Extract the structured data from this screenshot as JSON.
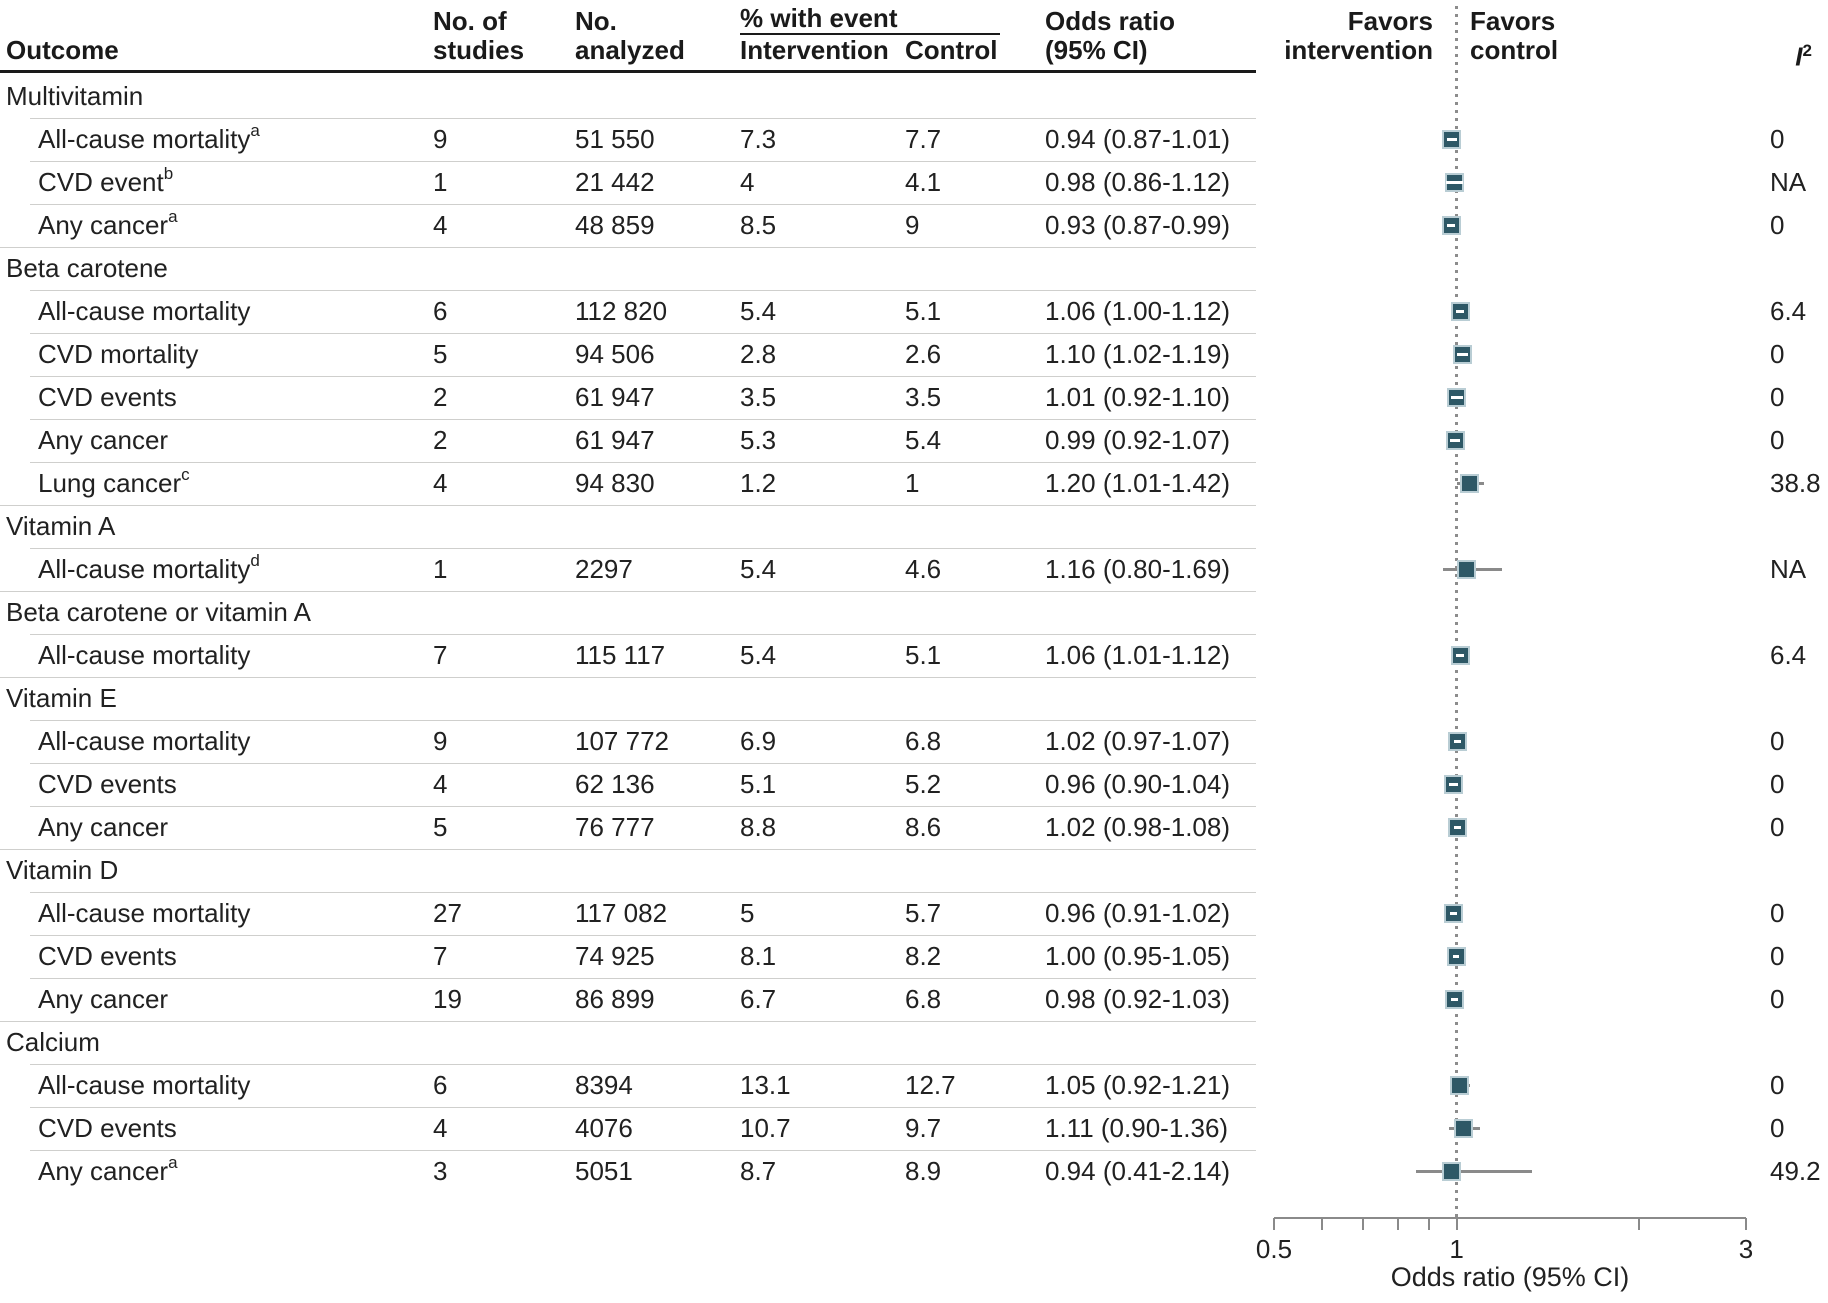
{
  "header": {
    "outcome": "Outcome",
    "no_of_studies_1": "No. of",
    "no_of_studies_2": "studies",
    "no_analyzed_1": "No.",
    "no_analyzed_2": "analyzed",
    "pct_with_event": "% with event",
    "intervention": "Intervention",
    "control": "Control",
    "odds_ratio_1": "Odds ratio",
    "odds_ratio_2": "(95% CI)",
    "favors_intervention_1": "Favors",
    "favors_intervention_2": "intervention",
    "favors_control_1": "Favors",
    "favors_control_2": "control",
    "i2_letter": "I",
    "i2_sup": "2"
  },
  "colors": {
    "marker_fill": "#2e5866",
    "marker_border": "#b9cdd4",
    "whisker": "#8a8a8a",
    "inner_ci": "#ffffff",
    "dotted_line": "#8c8c8c",
    "row_rule": "#cfcfcd",
    "header_rule": "#1a1a1a",
    "text": "#212121"
  },
  "axis": {
    "title": "Odds ratio (95% CI)",
    "min": 0.5,
    "max": 3,
    "scale": "log",
    "ticks": [
      0.5,
      0.6,
      0.7,
      0.8,
      0.9,
      1,
      2,
      3
    ],
    "tick_labels": [
      "0.5",
      "1",
      "3"
    ],
    "tick_label_values": [
      0.5,
      1,
      3
    ]
  },
  "chart_data": {
    "type": "forest",
    "note": "Forest plot of odds ratios; reference line at OR = 1",
    "columns": [
      "Outcome",
      "No. of studies",
      "No. analyzed",
      "% with event Intervention",
      "% with event Control",
      "Odds ratio (95% CI)",
      "I2"
    ],
    "rows": [
      {
        "type": "section",
        "label": "Multivitamin"
      },
      {
        "type": "data",
        "label": "All-cause mortality",
        "sup": "a",
        "studies": "9",
        "analyzed": "51 550",
        "pct_intervention": "7.3",
        "pct_control": "7.7",
        "or_text": "0.94 (0.87-1.01)",
        "or": 0.94,
        "ci_low": 0.87,
        "ci_high": 1.01,
        "i2": "0"
      },
      {
        "type": "data",
        "label": "CVD event",
        "sup": "b",
        "studies": "1",
        "analyzed": "21 442",
        "pct_intervention": "4",
        "pct_control": "4.1",
        "or_text": "0.98 (0.86-1.12)",
        "or": 0.98,
        "ci_low": 0.86,
        "ci_high": 1.12,
        "i2": "NA"
      },
      {
        "type": "data",
        "label": "Any cancer",
        "sup": "a",
        "studies": "4",
        "analyzed": "48 859",
        "pct_intervention": "8.5",
        "pct_control": "9",
        "or_text": "0.93 (0.87-0.99)",
        "or": 0.93,
        "ci_low": 0.87,
        "ci_high": 0.99,
        "i2": "0"
      },
      {
        "type": "section",
        "label": "Beta carotene"
      },
      {
        "type": "data",
        "label": "All-cause mortality",
        "sup": "",
        "studies": "6",
        "analyzed": "112 820",
        "pct_intervention": "5.4",
        "pct_control": "5.1",
        "or_text": "1.06 (1.00-1.12)",
        "or": 1.06,
        "ci_low": 1.0,
        "ci_high": 1.12,
        "i2": "6.4"
      },
      {
        "type": "data",
        "label": "CVD mortality",
        "sup": "",
        "studies": "5",
        "analyzed": "94 506",
        "pct_intervention": "2.8",
        "pct_control": "2.6",
        "or_text": "1.10 (1.02-1.19)",
        "or": 1.1,
        "ci_low": 1.02,
        "ci_high": 1.19,
        "i2": "0"
      },
      {
        "type": "data",
        "label": "CVD events",
        "sup": "",
        "studies": "2",
        "analyzed": "61 947",
        "pct_intervention": "3.5",
        "pct_control": "3.5",
        "or_text": "1.01 (0.92-1.10)",
        "or": 1.01,
        "ci_low": 0.92,
        "ci_high": 1.1,
        "i2": "0"
      },
      {
        "type": "data",
        "label": "Any cancer",
        "sup": "",
        "studies": "2",
        "analyzed": "61 947",
        "pct_intervention": "5.3",
        "pct_control": "5.4",
        "or_text": "0.99 (0.92-1.07)",
        "or": 0.99,
        "ci_low": 0.92,
        "ci_high": 1.07,
        "i2": "0"
      },
      {
        "type": "data",
        "label": "Lung cancer",
        "sup": "c",
        "studies": "4",
        "analyzed": "94 830",
        "pct_intervention": "1.2",
        "pct_control": "1",
        "or_text": "1.20 (1.01-1.42)",
        "or": 1.2,
        "ci_low": 1.01,
        "ci_high": 1.42,
        "i2": "38.8"
      },
      {
        "type": "section",
        "label": "Vitamin A"
      },
      {
        "type": "data",
        "label": "All-cause mortality",
        "sup": "d",
        "studies": "1",
        "analyzed": "2297",
        "pct_intervention": "5.4",
        "pct_control": "4.6",
        "or_text": "1.16 (0.80-1.69)",
        "or": 1.16,
        "ci_low": 0.8,
        "ci_high": 1.69,
        "i2": "NA"
      },
      {
        "type": "section",
        "label": "Beta carotene or vitamin A"
      },
      {
        "type": "data",
        "label": "All-cause mortality",
        "sup": "",
        "studies": "7",
        "analyzed": "115 117",
        "pct_intervention": "5.4",
        "pct_control": "5.1",
        "or_text": "1.06 (1.01-1.12)",
        "or": 1.06,
        "ci_low": 1.01,
        "ci_high": 1.12,
        "i2": "6.4"
      },
      {
        "type": "section",
        "label": "Vitamin E"
      },
      {
        "type": "data",
        "label": "All-cause mortality",
        "sup": "",
        "studies": "9",
        "analyzed": "107 772",
        "pct_intervention": "6.9",
        "pct_control": "6.8",
        "or_text": "1.02 (0.97-1.07)",
        "or": 1.02,
        "ci_low": 0.97,
        "ci_high": 1.07,
        "i2": "0"
      },
      {
        "type": "data",
        "label": "CVD events",
        "sup": "",
        "studies": "4",
        "analyzed": "62 136",
        "pct_intervention": "5.1",
        "pct_control": "5.2",
        "or_text": "0.96 (0.90-1.04)",
        "or": 0.96,
        "ci_low": 0.9,
        "ci_high": 1.04,
        "i2": "0"
      },
      {
        "type": "data",
        "label": "Any cancer",
        "sup": "",
        "studies": "5",
        "analyzed": "76 777",
        "pct_intervention": "8.8",
        "pct_control": "8.6",
        "or_text": "1.02 (0.98-1.08)",
        "or": 1.02,
        "ci_low": 0.98,
        "ci_high": 1.08,
        "i2": "0"
      },
      {
        "type": "section",
        "label": "Vitamin D"
      },
      {
        "type": "data",
        "label": "All-cause mortality",
        "sup": "",
        "studies": "27",
        "analyzed": "117 082",
        "pct_intervention": "5",
        "pct_control": "5.7",
        "or_text": "0.96 (0.91-1.02)",
        "or": 0.96,
        "ci_low": 0.91,
        "ci_high": 1.02,
        "i2": "0"
      },
      {
        "type": "data",
        "label": "CVD events",
        "sup": "",
        "studies": "7",
        "analyzed": "74 925",
        "pct_intervention": "8.1",
        "pct_control": "8.2",
        "or_text": "1.00 (0.95-1.05)",
        "or": 1.0,
        "ci_low": 0.95,
        "ci_high": 1.05,
        "i2": "0"
      },
      {
        "type": "data",
        "label": "Any cancer",
        "sup": "",
        "studies": "19",
        "analyzed": "86 899",
        "pct_intervention": "6.7",
        "pct_control": "6.8",
        "or_text": "0.98 (0.92-1.03)",
        "or": 0.98,
        "ci_low": 0.92,
        "ci_high": 1.03,
        "i2": "0"
      },
      {
        "type": "section",
        "label": "Calcium"
      },
      {
        "type": "data",
        "label": "All-cause mortality",
        "sup": "",
        "studies": "6",
        "analyzed": "8394",
        "pct_intervention": "13.1",
        "pct_control": "12.7",
        "or_text": "1.05 (0.92-1.21)",
        "or": 1.05,
        "ci_low": 0.92,
        "ci_high": 1.21,
        "i2": "0"
      },
      {
        "type": "data",
        "label": "CVD events",
        "sup": "",
        "studies": "4",
        "analyzed": "4076",
        "pct_intervention": "10.7",
        "pct_control": "9.7",
        "or_text": "1.11 (0.90-1.36)",
        "or": 1.11,
        "ci_low": 0.9,
        "ci_high": 1.36,
        "i2": "0"
      },
      {
        "type": "data",
        "label": "Any cancer",
        "sup": "a",
        "studies": "3",
        "analyzed": "5051",
        "pct_intervention": "8.7",
        "pct_control": "8.9",
        "or_text": "0.94 (0.41-2.14)",
        "or": 0.94,
        "ci_low": 0.41,
        "ci_high": 2.14,
        "i2": "49.2"
      }
    ]
  }
}
